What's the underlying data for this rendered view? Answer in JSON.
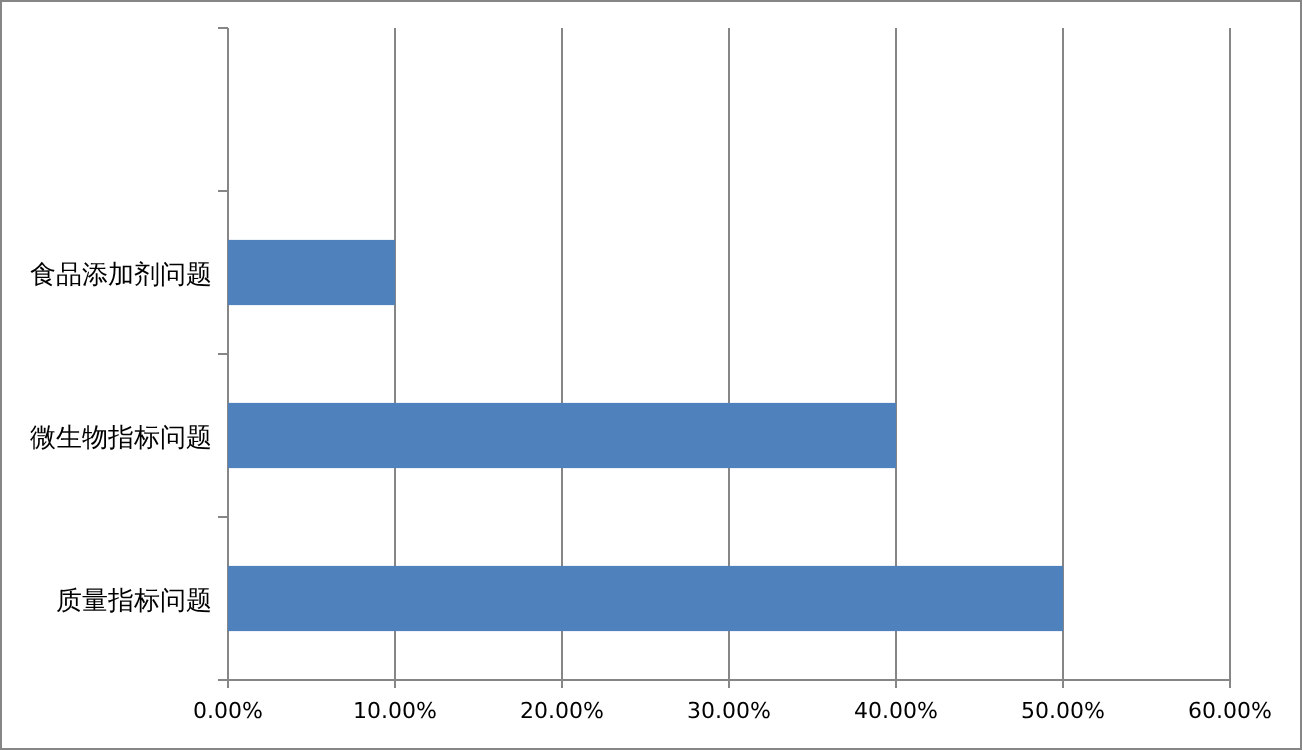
{
  "chart_data": {
    "type": "bar",
    "orientation": "horizontal",
    "categories": [
      null,
      "食品添加剂问题",
      "微生物指标问题",
      "质量指标问题"
    ],
    "values": [
      null,
      10,
      40,
      50
    ],
    "color": "#4f81bd",
    "xlim": [
      0,
      60
    ],
    "xticks": [
      {
        "value": 0,
        "label": "0.00%"
      },
      {
        "value": 10,
        "label": "10.00%"
      },
      {
        "value": 20,
        "label": "20.00%"
      },
      {
        "value": 30,
        "label": "30.00%"
      },
      {
        "value": 40,
        "label": "40.00%"
      },
      {
        "value": 50,
        "label": "50.00%"
      },
      {
        "value": 60,
        "label": "60.00%"
      }
    ],
    "grid": "x"
  }
}
